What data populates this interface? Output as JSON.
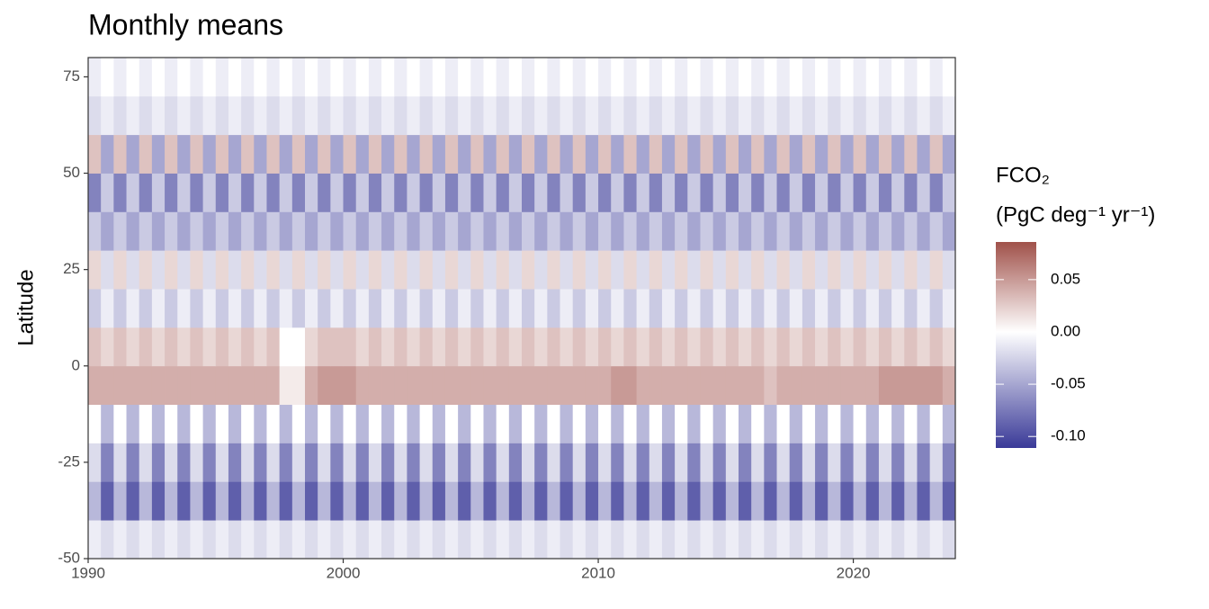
{
  "chart_data": {
    "type": "heatmap",
    "title": "Monthly means",
    "y_label": "Latitude",
    "xlim": [
      1990,
      2024
    ],
    "xticks": [
      1990,
      2000,
      2010,
      2020
    ],
    "ylim": [
      -50,
      80
    ],
    "yticks": [
      -50,
      -25,
      0,
      25,
      50,
      75
    ],
    "x": [
      1990,
      1990.5,
      1991,
      1991.5,
      1992,
      1992.5,
      1993,
      1993.5,
      1994,
      1994.5,
      1995,
      1995.5,
      1996,
      1996.5,
      1997,
      1997.5,
      1998,
      1998.5,
      1999,
      1999.5,
      2000,
      2000.5,
      2001,
      2001.5,
      2002,
      2002.5,
      2003,
      2003.5,
      2004,
      2004.5,
      2005,
      2005.5,
      2006,
      2006.5,
      2007,
      2007.5,
      2008,
      2008.5,
      2009,
      2009.5,
      2010,
      2010.5,
      2011,
      2011.5,
      2012,
      2012.5,
      2013,
      2013.5,
      2014,
      2014.5,
      2015,
      2015.5,
      2016,
      2016.5,
      2017,
      2017.5,
      2018,
      2018.5,
      2019,
      2019.5,
      2020,
      2020.5,
      2021,
      2021.5,
      2022,
      2022.5,
      2023,
      2023.5
    ],
    "y": [
      -45,
      -35,
      -25,
      -15,
      -5,
      5,
      15,
      25,
      35,
      45,
      55,
      65,
      75
    ],
    "values": [
      [
        -0.01,
        -0.02,
        -0.01,
        -0.02,
        -0.01,
        -0.02,
        -0.01,
        -0.02,
        -0.01,
        -0.02,
        -0.01,
        -0.02,
        -0.01,
        -0.02,
        -0.01,
        -0.02,
        -0.01,
        -0.02,
        -0.01,
        -0.02,
        -0.01,
        -0.02,
        -0.01,
        -0.02,
        -0.01,
        -0.02,
        -0.01,
        -0.02,
        -0.01,
        -0.02,
        -0.01,
        -0.02,
        -0.01,
        -0.02,
        -0.01,
        -0.02,
        -0.01,
        -0.02,
        -0.01,
        -0.02,
        -0.01,
        -0.02,
        -0.01,
        -0.02,
        -0.01,
        -0.02,
        -0.01,
        -0.02,
        -0.01,
        -0.02,
        -0.01,
        -0.02,
        -0.01,
        -0.02,
        -0.01,
        -0.02,
        -0.01,
        -0.02,
        -0.01,
        -0.02,
        -0.01,
        -0.02,
        -0.01,
        -0.02,
        -0.01,
        -0.02,
        -0.01,
        -0.02
      ],
      [
        -0.04,
        -0.09,
        -0.04,
        -0.09,
        -0.04,
        -0.09,
        -0.04,
        -0.09,
        -0.04,
        -0.09,
        -0.04,
        -0.09,
        -0.04,
        -0.09,
        -0.04,
        -0.09,
        -0.04,
        -0.09,
        -0.04,
        -0.09,
        -0.04,
        -0.09,
        -0.04,
        -0.09,
        -0.04,
        -0.09,
        -0.04,
        -0.09,
        -0.04,
        -0.09,
        -0.04,
        -0.09,
        -0.04,
        -0.09,
        -0.04,
        -0.09,
        -0.04,
        -0.09,
        -0.04,
        -0.09,
        -0.04,
        -0.09,
        -0.04,
        -0.09,
        -0.04,
        -0.09,
        -0.04,
        -0.09,
        -0.04,
        -0.09,
        -0.04,
        -0.09,
        -0.04,
        -0.09,
        -0.04,
        -0.09,
        -0.04,
        -0.09,
        -0.04,
        -0.09,
        -0.04,
        -0.09,
        -0.04,
        -0.09,
        -0.04,
        -0.09,
        -0.04,
        -0.09
      ],
      [
        -0.02,
        -0.07,
        -0.02,
        -0.07,
        -0.02,
        -0.07,
        -0.02,
        -0.07,
        -0.02,
        -0.07,
        -0.02,
        -0.07,
        -0.02,
        -0.07,
        -0.02,
        -0.07,
        -0.02,
        -0.07,
        -0.02,
        -0.07,
        -0.02,
        -0.07,
        -0.02,
        -0.07,
        -0.02,
        -0.07,
        -0.02,
        -0.07,
        -0.02,
        -0.07,
        -0.02,
        -0.07,
        -0.02,
        -0.07,
        -0.02,
        -0.07,
        -0.02,
        -0.07,
        -0.02,
        -0.07,
        -0.02,
        -0.07,
        -0.02,
        -0.07,
        -0.02,
        -0.07,
        -0.02,
        -0.07,
        -0.02,
        -0.07,
        -0.02,
        -0.07,
        -0.02,
        -0.07,
        -0.02,
        -0.07,
        -0.02,
        -0.07,
        -0.02,
        -0.07,
        -0.02,
        -0.07,
        -0.02,
        -0.07,
        -0.02,
        -0.07,
        -0.02,
        -0.07
      ],
      [
        0,
        -0.04,
        0,
        -0.04,
        0,
        -0.04,
        0,
        -0.04,
        0,
        -0.04,
        0,
        -0.04,
        0,
        -0.04,
        0,
        -0.04,
        0,
        -0.04,
        0,
        -0.04,
        0,
        -0.04,
        0,
        -0.04,
        0,
        -0.04,
        0,
        -0.04,
        0,
        -0.04,
        0,
        -0.04,
        0,
        -0.04,
        0,
        -0.04,
        0,
        -0.04,
        0,
        -0.04,
        0,
        -0.04,
        0,
        -0.04,
        0,
        -0.04,
        0,
        -0.04,
        0,
        -0.04,
        0,
        -0.04,
        0,
        -0.04,
        0,
        -0.04,
        0,
        -0.04,
        0,
        -0.04,
        0,
        -0.04,
        0,
        -0.04,
        0,
        -0.04,
        0,
        -0.04
      ],
      [
        0.04,
        0.04,
        0.04,
        0.04,
        0.04,
        0.04,
        0.04,
        0.04,
        0.04,
        0.04,
        0.04,
        0.04,
        0.04,
        0.04,
        0.04,
        0.01,
        0.01,
        0.04,
        0.05,
        0.05,
        0.05,
        0.04,
        0.04,
        0.04,
        0.04,
        0.04,
        0.04,
        0.04,
        0.04,
        0.04,
        0.04,
        0.04,
        0.04,
        0.04,
        0.04,
        0.04,
        0.04,
        0.04,
        0.04,
        0.04,
        0.04,
        0.05,
        0.05,
        0.04,
        0.04,
        0.04,
        0.04,
        0.04,
        0.04,
        0.04,
        0.04,
        0.04,
        0.04,
        0.03,
        0.04,
        0.04,
        0.04,
        0.04,
        0.04,
        0.04,
        0.04,
        0.04,
        0.05,
        0.05,
        0.05,
        0.05,
        0.05,
        0.04
      ],
      [
        0.03,
        0.02,
        0.03,
        0.02,
        0.03,
        0.02,
        0.03,
        0.02,
        0.03,
        0.02,
        0.03,
        0.02,
        0.03,
        0.02,
        0.03,
        0,
        0,
        0.02,
        0.03,
        0.03,
        0.03,
        0.02,
        0.03,
        0.02,
        0.03,
        0.02,
        0.03,
        0.02,
        0.03,
        0.02,
        0.03,
        0.02,
        0.03,
        0.02,
        0.03,
        0.02,
        0.03,
        0.02,
        0.03,
        0.02,
        0.03,
        0.02,
        0.03,
        0.02,
        0.03,
        0.02,
        0.03,
        0.02,
        0.03,
        0.02,
        0.03,
        0.02,
        0.03,
        0.02,
        0.03,
        0.02,
        0.03,
        0.02,
        0.03,
        0.02,
        0.03,
        0.02,
        0.03,
        0.02,
        0.03,
        0.02,
        0.03,
        0.02
      ],
      [
        -0.03,
        -0.01,
        -0.03,
        -0.01,
        -0.03,
        -0.01,
        -0.03,
        -0.01,
        -0.03,
        -0.01,
        -0.03,
        -0.01,
        -0.03,
        -0.01,
        -0.03,
        -0.01,
        -0.03,
        -0.01,
        -0.03,
        -0.01,
        -0.03,
        -0.01,
        -0.03,
        -0.01,
        -0.03,
        -0.01,
        -0.03,
        -0.01,
        -0.03,
        -0.01,
        -0.03,
        -0.01,
        -0.03,
        -0.01,
        -0.03,
        -0.01,
        -0.03,
        -0.01,
        -0.03,
        -0.01,
        -0.03,
        -0.01,
        -0.03,
        -0.01,
        -0.03,
        -0.01,
        -0.03,
        -0.01,
        -0.03,
        -0.01,
        -0.03,
        -0.01,
        -0.03,
        -0.01,
        -0.03,
        -0.01,
        -0.03,
        -0.01,
        -0.03,
        -0.01,
        -0.03,
        -0.01,
        -0.03,
        -0.01,
        -0.03,
        -0.01,
        -0.03,
        -0.01
      ],
      [
        0.02,
        -0.02,
        0.02,
        -0.02,
        0.02,
        -0.02,
        0.02,
        -0.02,
        0.02,
        -0.02,
        0.02,
        -0.02,
        0.02,
        -0.02,
        0.02,
        -0.02,
        0.02,
        -0.02,
        0.02,
        -0.02,
        0.02,
        -0.02,
        0.02,
        -0.02,
        0.02,
        -0.02,
        0.02,
        -0.02,
        0.02,
        -0.02,
        0.02,
        -0.02,
        0.02,
        -0.02,
        0.02,
        -0.02,
        0.02,
        -0.02,
        0.02,
        -0.02,
        0.02,
        -0.02,
        0.02,
        -0.02,
        0.02,
        -0.02,
        0.02,
        -0.02,
        0.02,
        -0.02,
        0.02,
        -0.02,
        0.02,
        -0.02,
        0.02,
        -0.02,
        0.02,
        -0.02,
        0.02,
        -0.02,
        0.02,
        -0.02,
        0.02,
        -0.02,
        0.02,
        -0.02,
        0.02,
        -0.02
      ],
      [
        -0.03,
        -0.05,
        -0.03,
        -0.05,
        -0.03,
        -0.05,
        -0.03,
        -0.05,
        -0.03,
        -0.05,
        -0.03,
        -0.05,
        -0.03,
        -0.05,
        -0.03,
        -0.05,
        -0.03,
        -0.05,
        -0.03,
        -0.05,
        -0.03,
        -0.05,
        -0.03,
        -0.05,
        -0.03,
        -0.05,
        -0.03,
        -0.05,
        -0.03,
        -0.05,
        -0.03,
        -0.05,
        -0.03,
        -0.05,
        -0.03,
        -0.05,
        -0.03,
        -0.05,
        -0.03,
        -0.05,
        -0.03,
        -0.05,
        -0.03,
        -0.05,
        -0.03,
        -0.05,
        -0.03,
        -0.05,
        -0.03,
        -0.05,
        -0.03,
        -0.05,
        -0.03,
        -0.05,
        -0.03,
        -0.05,
        -0.03,
        -0.05,
        -0.03,
        -0.05,
        -0.03,
        -0.05,
        -0.03,
        -0.05,
        -0.03,
        -0.05,
        -0.03,
        -0.05
      ],
      [
        -0.07,
        -0.03,
        -0.07,
        -0.03,
        -0.07,
        -0.03,
        -0.07,
        -0.03,
        -0.07,
        -0.03,
        -0.07,
        -0.03,
        -0.07,
        -0.03,
        -0.07,
        -0.03,
        -0.07,
        -0.03,
        -0.07,
        -0.03,
        -0.07,
        -0.03,
        -0.07,
        -0.03,
        -0.07,
        -0.03,
        -0.07,
        -0.03,
        -0.07,
        -0.03,
        -0.07,
        -0.03,
        -0.07,
        -0.03,
        -0.07,
        -0.03,
        -0.07,
        -0.03,
        -0.07,
        -0.03,
        -0.07,
        -0.03,
        -0.07,
        -0.03,
        -0.07,
        -0.03,
        -0.07,
        -0.03,
        -0.07,
        -0.03,
        -0.07,
        -0.03,
        -0.07,
        -0.03,
        -0.07,
        -0.03,
        -0.07,
        -0.03,
        -0.07,
        -0.03,
        -0.07,
        -0.03,
        -0.07,
        -0.03,
        -0.07,
        -0.03,
        -0.07,
        -0.03
      ],
      [
        0.03,
        -0.05,
        0.03,
        -0.05,
        0.03,
        -0.05,
        0.03,
        -0.05,
        0.03,
        -0.05,
        0.03,
        -0.05,
        0.03,
        -0.05,
        0.03,
        -0.05,
        0.03,
        -0.05,
        0.03,
        -0.05,
        0.03,
        -0.05,
        0.03,
        -0.05,
        0.03,
        -0.05,
        0.03,
        -0.05,
        0.03,
        -0.05,
        0.03,
        -0.05,
        0.03,
        -0.05,
        0.03,
        -0.05,
        0.03,
        -0.05,
        0.03,
        -0.05,
        0.03,
        -0.05,
        0.03,
        -0.05,
        0.03,
        -0.05,
        0.03,
        -0.05,
        0.03,
        -0.05,
        0.03,
        -0.05,
        0.03,
        -0.05,
        0.03,
        -0.05,
        0.03,
        -0.05,
        0.03,
        -0.05,
        0.03,
        -0.05,
        0.03,
        -0.05,
        0.03,
        -0.05,
        0.03,
        -0.05
      ],
      [
        -0.02,
        -0.01,
        -0.02,
        -0.01,
        -0.02,
        -0.01,
        -0.02,
        -0.01,
        -0.02,
        -0.01,
        -0.02,
        -0.01,
        -0.02,
        -0.01,
        -0.02,
        -0.01,
        -0.02,
        -0.01,
        -0.02,
        -0.01,
        -0.02,
        -0.01,
        -0.02,
        -0.01,
        -0.02,
        -0.01,
        -0.02,
        -0.01,
        -0.02,
        -0.01,
        -0.02,
        -0.01,
        -0.02,
        -0.01,
        -0.02,
        -0.01,
        -0.02,
        -0.01,
        -0.02,
        -0.01,
        -0.02,
        -0.01,
        -0.02,
        -0.01,
        -0.02,
        -0.01,
        -0.02,
        -0.01,
        -0.02,
        -0.01,
        -0.02,
        -0.01,
        -0.02,
        -0.01,
        -0.02,
        -0.01,
        -0.02,
        -0.01,
        -0.02,
        -0.01,
        -0.02,
        -0.01,
        -0.02,
        -0.01,
        -0.02,
        -0.01,
        -0.02,
        -0.01
      ],
      [
        -0.01,
        0,
        -0.01,
        0,
        -0.01,
        0,
        -0.01,
        0,
        -0.01,
        0,
        -0.01,
        0,
        -0.01,
        0,
        -0.01,
        0,
        -0.01,
        0,
        -0.01,
        0,
        -0.01,
        0,
        -0.01,
        0,
        -0.01,
        0,
        -0.01,
        0,
        -0.01,
        0,
        -0.01,
        0,
        -0.01,
        0,
        -0.01,
        0,
        -0.01,
        0,
        -0.01,
        0,
        -0.01,
        0,
        -0.01,
        0,
        -0.01,
        0,
        -0.01,
        0,
        -0.01,
        0,
        -0.01,
        0,
        -0.01,
        0,
        -0.01,
        0,
        -0.01,
        0,
        -0.01,
        0,
        -0.01,
        0,
        -0.01,
        0,
        -0.01,
        0,
        -0.01,
        0
      ]
    ],
    "colorbar": {
      "title": [
        "FCO₂",
        "(PgC deg⁻¹ yr⁻¹)"
      ],
      "lim": [
        -0.111,
        0.086
      ],
      "ticks": [
        0.05,
        {
          "value": 0,
          "label": "0.00"
        },
        -0.05,
        {
          "value": -0.1,
          "label": "-0.10"
        }
      ],
      "colors": {
        "low": "#3a3a98",
        "mid": "#ffffff",
        "high": "#a0514a"
      }
    }
  }
}
